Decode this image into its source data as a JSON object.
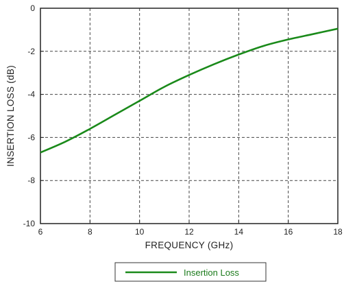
{
  "chart_data": {
    "type": "line",
    "xlabel": "FREQUENCY (GHz)",
    "ylabel": "INSERTION LOSS (dB)",
    "xlim": [
      6,
      18
    ],
    "ylim": [
      -10,
      0
    ],
    "xticks": [
      6,
      8,
      10,
      12,
      14,
      16,
      18
    ],
    "yticks": [
      0,
      -2,
      -4,
      -6,
      -8,
      -10
    ],
    "grid": true,
    "legend_position": "bottom-center",
    "series": [
      {
        "name": "Insertion Loss",
        "color": "#1a8a1a",
        "x": [
          6,
          7,
          8,
          9,
          10,
          11,
          12,
          13,
          14,
          15,
          16,
          17,
          18
        ],
        "values": [
          -6.7,
          -6.2,
          -5.6,
          -4.95,
          -4.3,
          -3.65,
          -3.1,
          -2.6,
          -2.15,
          -1.75,
          -1.45,
          -1.2,
          -0.95
        ]
      }
    ]
  }
}
